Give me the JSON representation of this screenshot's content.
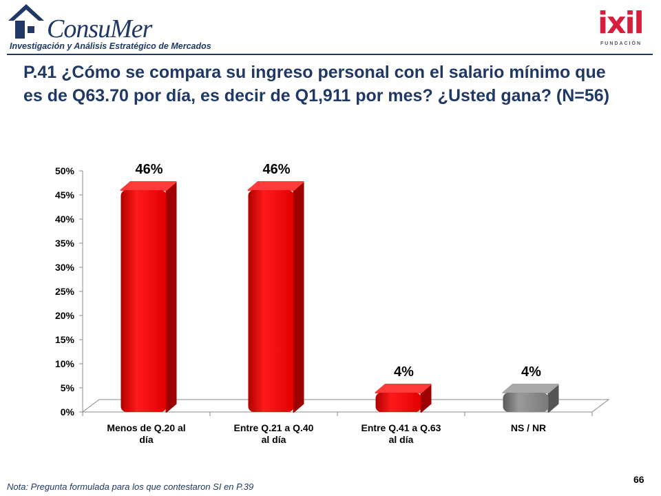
{
  "header": {
    "brand_name": "ConsuMer",
    "brand_tagline": "Investigación y Análisis Estratégico de Mercados",
    "partner_name": "ixil",
    "partner_sub": "FUNDACIÓN"
  },
  "slide": {
    "title": "P.41 ¿Cómo se compara su ingreso personal con el salario mínimo que es de Q63.70 por día, es decir de Q1,911 por mes? ¿Usted gana? (N=56)",
    "note": "Nota: Pregunta formulada para los que contestaron SI en P.39",
    "page_number": "66"
  },
  "chart_data": {
    "type": "bar",
    "categories": [
      [
        "Menos de Q.20 al",
        "día"
      ],
      [
        "Entre Q.21 a Q.40",
        "al día"
      ],
      [
        "Entre Q.41 a Q.63",
        "al día"
      ],
      [
        "NS / NR"
      ]
    ],
    "values": [
      46,
      46,
      4,
      4
    ],
    "value_labels": [
      "46%",
      "46%",
      "4%",
      "4%"
    ],
    "bar_colors": [
      "#e00000",
      "#e00000",
      "#e00000",
      "#7f7f7f"
    ],
    "ylim": [
      0,
      50
    ],
    "yticks": [
      0,
      5,
      10,
      15,
      20,
      25,
      30,
      35,
      40,
      45,
      50
    ],
    "ytick_labels": [
      "0%",
      "5%",
      "10%",
      "15%",
      "20%",
      "25%",
      "30%",
      "35%",
      "40%",
      "45%",
      "50%"
    ],
    "grid": false,
    "legend": "none"
  }
}
